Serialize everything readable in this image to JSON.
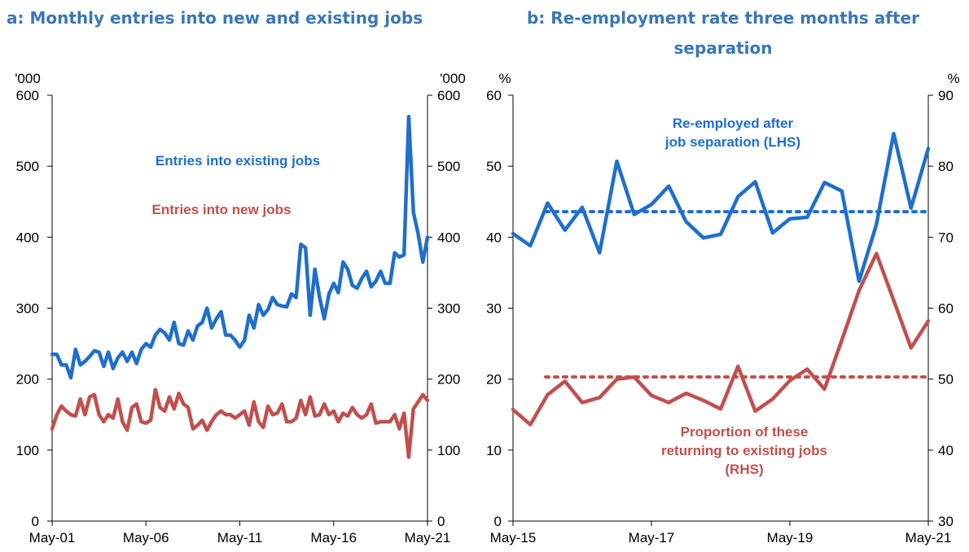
{
  "chart_data": [
    {
      "panel": "a",
      "type": "line",
      "title": "a: Monthly entries into new and existing jobs",
      "yunit_left": "'000",
      "yunit_right": "'000",
      "ylim": [
        0,
        600
      ],
      "yticks": [
        0,
        100,
        200,
        300,
        400,
        500,
        600
      ],
      "xlim": [
        2001.33,
        2021.33
      ],
      "xticks": [
        {
          "value": 2001.33,
          "label": "May-01"
        },
        {
          "value": 2006.33,
          "label": "May-06"
        },
        {
          "value": 2011.33,
          "label": "May-11"
        },
        {
          "value": 2016.33,
          "label": "May-16"
        },
        {
          "value": 2021.33,
          "label": "May-21"
        }
      ],
      "colors": {
        "existing": "#1f6fcb",
        "new": "#c0504d"
      },
      "annotations": [
        "Entries into existing jobs",
        "Entries into new jobs"
      ],
      "series": [
        {
          "key": "existing",
          "x": [
            2001.33,
            2001.58,
            2001.83,
            2002.08,
            2002.33,
            2002.58,
            2002.83,
            2003.08,
            2003.33,
            2003.58,
            2003.83,
            2004.08,
            2004.33,
            2004.58,
            2004.83,
            2005.08,
            2005.33,
            2005.58,
            2005.83,
            2006.08,
            2006.33,
            2006.58,
            2006.83,
            2007.08,
            2007.33,
            2007.58,
            2007.83,
            2008.08,
            2008.33,
            2008.58,
            2008.83,
            2009.08,
            2009.33,
            2009.58,
            2009.83,
            2010.08,
            2010.33,
            2010.58,
            2010.83,
            2011.08,
            2011.33,
            2011.58,
            2011.83,
            2012.08,
            2012.33,
            2012.58,
            2012.83,
            2013.08,
            2013.33,
            2013.58,
            2013.83,
            2014.08,
            2014.33,
            2014.58,
            2014.83,
            2015.08,
            2015.33,
            2015.58,
            2015.83,
            2016.08,
            2016.33,
            2016.58,
            2016.83,
            2017.08,
            2017.33,
            2017.58,
            2017.83,
            2018.08,
            2018.33,
            2018.58,
            2018.83,
            2019.08,
            2019.33,
            2019.58,
            2019.83,
            2020.08,
            2020.33,
            2020.58,
            2020.83,
            2021.08,
            2021.33
          ],
          "y": [
            235,
            235,
            220,
            220,
            202,
            242,
            220,
            225,
            232,
            240,
            238,
            218,
            238,
            215,
            230,
            238,
            225,
            238,
            222,
            242,
            250,
            245,
            262,
            270,
            265,
            255,
            280,
            250,
            248,
            268,
            255,
            275,
            280,
            300,
            272,
            285,
            295,
            262,
            262,
            255,
            245,
            255,
            290,
            272,
            305,
            290,
            298,
            315,
            305,
            303,
            302,
            320,
            315,
            390,
            385,
            290,
            355,
            315,
            285,
            320,
            335,
            322,
            365,
            355,
            332,
            328,
            342,
            352,
            330,
            338,
            352,
            335,
            335,
            378,
            372,
            375,
            570,
            435,
            405,
            365,
            400
          ]
        },
        {
          "key": "new",
          "x": [
            2001.33,
            2001.58,
            2001.83,
            2002.08,
            2002.33,
            2002.58,
            2002.83,
            2003.08,
            2003.33,
            2003.58,
            2003.83,
            2004.08,
            2004.33,
            2004.58,
            2004.83,
            2005.08,
            2005.33,
            2005.58,
            2005.83,
            2006.08,
            2006.33,
            2006.58,
            2006.83,
            2007.08,
            2007.33,
            2007.58,
            2007.83,
            2008.08,
            2008.33,
            2008.58,
            2008.83,
            2009.08,
            2009.33,
            2009.58,
            2009.83,
            2010.08,
            2010.33,
            2010.58,
            2010.83,
            2011.08,
            2011.33,
            2011.58,
            2011.83,
            2012.08,
            2012.33,
            2012.58,
            2012.83,
            2013.08,
            2013.33,
            2013.58,
            2013.83,
            2014.08,
            2014.33,
            2014.58,
            2014.83,
            2015.08,
            2015.33,
            2015.58,
            2015.83,
            2016.08,
            2016.33,
            2016.58,
            2016.83,
            2017.08,
            2017.33,
            2017.58,
            2017.83,
            2018.08,
            2018.33,
            2018.58,
            2018.83,
            2019.08,
            2019.33,
            2019.58,
            2019.83,
            2020.08,
            2020.33,
            2020.58,
            2020.83,
            2021.08,
            2021.33
          ],
          "y": [
            130,
            150,
            162,
            155,
            150,
            148,
            172,
            150,
            175,
            178,
            150,
            140,
            150,
            145,
            172,
            140,
            128,
            160,
            165,
            140,
            138,
            142,
            185,
            160,
            155,
            175,
            158,
            180,
            165,
            160,
            130,
            135,
            142,
            128,
            140,
            150,
            155,
            150,
            150,
            145,
            150,
            155,
            135,
            168,
            140,
            132,
            162,
            150,
            152,
            165,
            140,
            140,
            145,
            170,
            150,
            175,
            148,
            150,
            165,
            150,
            155,
            140,
            152,
            148,
            160,
            150,
            145,
            150,
            165,
            138,
            140,
            140,
            140,
            150,
            130,
            152,
            90,
            158,
            168,
            178,
            170
          ]
        }
      ]
    },
    {
      "panel": "b",
      "type": "line",
      "title_line1": "b: Re-employment rate three months after",
      "title_line2": "separation",
      "yunit_left": "%",
      "yunit_right": "%",
      "ylim_left": [
        0,
        60
      ],
      "yticks_left": [
        0,
        10,
        20,
        30,
        40,
        50,
        60
      ],
      "ylim_right": [
        30,
        90
      ],
      "yticks_right": [
        30,
        40,
        50,
        60,
        70,
        80,
        90
      ],
      "xlim": [
        2015.33,
        2021.33
      ],
      "xticks": [
        {
          "value": 2015.33,
          "label": "May-15"
        },
        {
          "value": 2017.33,
          "label": "May-17"
        },
        {
          "value": 2019.33,
          "label": "May-19"
        },
        {
          "value": 2021.33,
          "label": "May-21"
        }
      ],
      "colors": {
        "reemployed": "#1f6fcb",
        "returning": "#c0504d"
      },
      "annotations": {
        "reemployed": [
          "Re-employed after",
          "job separation (LHS)"
        ],
        "returning": [
          "Proportion of these",
          "returning to existing jobs",
          "(RHS)"
        ]
      },
      "reference_lines": [
        {
          "axis": "left",
          "value": 43.6,
          "color": "#1f6fcb"
        },
        {
          "axis": "right",
          "value": 50.3,
          "color": "#c0504d"
        }
      ],
      "series": [
        {
          "key": "reemployed",
          "axis": "left",
          "x": [
            2015.33,
            2015.58,
            2015.83,
            2016.08,
            2016.33,
            2016.58,
            2016.83,
            2017.08,
            2017.33,
            2017.58,
            2017.83,
            2018.08,
            2018.33,
            2018.58,
            2018.83,
            2019.08,
            2019.33,
            2019.58,
            2019.83,
            2020.08,
            2020.33,
            2020.58,
            2020.83,
            2021.08,
            2021.33
          ],
          "y": [
            40.5,
            38.8,
            44.8,
            41.0,
            44.2,
            37.8,
            50.7,
            43.2,
            44.6,
            47.2,
            42.2,
            39.9,
            40.4,
            45.7,
            47.8,
            40.6,
            42.6,
            42.8,
            47.7,
            46.5,
            33.8,
            41.8,
            54.6,
            44.1,
            52.5
          ]
        },
        {
          "key": "returning",
          "axis": "right",
          "x": [
            2015.33,
            2015.58,
            2015.83,
            2016.08,
            2016.33,
            2016.58,
            2016.83,
            2017.08,
            2017.33,
            2017.58,
            2017.83,
            2018.08,
            2018.33,
            2018.58,
            2018.83,
            2019.08,
            2019.33,
            2019.58,
            2019.83,
            2020.08,
            2020.33,
            2020.58,
            2020.83,
            2021.08,
            2021.33
          ],
          "y": [
            45.7,
            43.6,
            47.8,
            49.7,
            46.7,
            47.4,
            50.0,
            50.3,
            47.7,
            46.7,
            48.0,
            47.0,
            45.8,
            51.8,
            45.5,
            47.2,
            49.8,
            51.4,
            48.6,
            55.5,
            62.5,
            67.7,
            61.1,
            54.4,
            58.2
          ]
        }
      ]
    }
  ]
}
